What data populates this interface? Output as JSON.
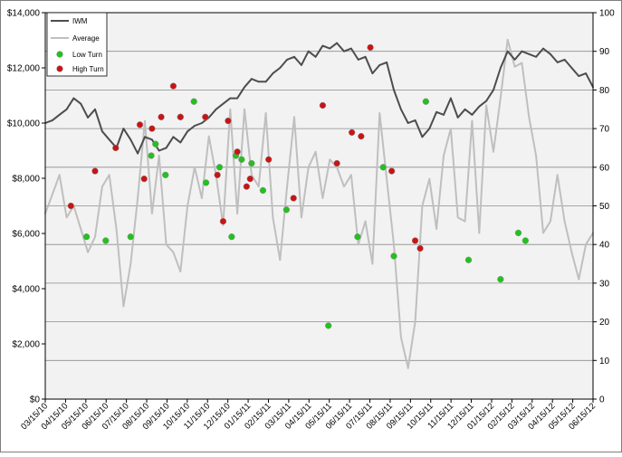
{
  "chart_data": {
    "type": "line",
    "title": "",
    "xlabel": "",
    "ylabel_left": "",
    "ylabel_right": "",
    "y_left": {
      "min": 0,
      "max": 14000,
      "ticks": [
        0,
        2000,
        4000,
        6000,
        8000,
        10000,
        12000,
        14000
      ],
      "tick_labels": [
        "$0",
        "$2,000",
        "$4,000",
        "$6,000",
        "$8,000",
        "$10,000",
        "$12,000",
        "$14,000"
      ]
    },
    "y_right": {
      "min": 0,
      "max": 100,
      "ticks": [
        0,
        10,
        20,
        30,
        40,
        50,
        60,
        70,
        80,
        90,
        100
      ],
      "tick_labels": [
        "0",
        "10",
        "20",
        "30",
        "40",
        "50",
        "60",
        "70",
        "80",
        "90",
        "100"
      ]
    },
    "x_tick_labels": [
      "03/15/10",
      "04/15/10",
      "05/15/10",
      "06/15/10",
      "07/15/10",
      "08/15/10",
      "09/15/10",
      "10/15/10",
      "11/15/10",
      "12/15/10",
      "01/15/11",
      "02/15/11",
      "03/15/11",
      "04/15/11",
      "05/15/11",
      "06/15/11",
      "07/15/11",
      "08/15/11",
      "09/15/11",
      "10/15/11",
      "11/15/11",
      "12/15/11",
      "01/15/12",
      "02/15/12",
      "03/15/12",
      "04/15/12",
      "05/15/12",
      "06/15/12"
    ],
    "grid": true,
    "legend_position": "top-left",
    "background_color": "#f2f2f2",
    "gridline_color": "#8c8c8c",
    "series": [
      {
        "name": "IWM",
        "axis": "left",
        "color": "#4d4d4d",
        "values": [
          [
            0,
            10000
          ],
          [
            1,
            10100
          ],
          [
            2,
            10300
          ],
          [
            3,
            10500
          ],
          [
            4,
            10900
          ],
          [
            5,
            10700
          ],
          [
            6,
            10200
          ],
          [
            7,
            10500
          ],
          [
            8,
            9700
          ],
          [
            9,
            9400
          ],
          [
            10,
            9100
          ],
          [
            11,
            9800
          ],
          [
            12,
            9400
          ],
          [
            13,
            8900
          ],
          [
            14,
            9500
          ],
          [
            15,
            9400
          ],
          [
            16,
            9000
          ],
          [
            17,
            9100
          ],
          [
            18,
            9500
          ],
          [
            19,
            9300
          ],
          [
            20,
            9700
          ],
          [
            21,
            9900
          ],
          [
            22,
            10000
          ],
          [
            23,
            10200
          ],
          [
            24,
            10500
          ],
          [
            25,
            10700
          ],
          [
            26,
            10900
          ],
          [
            27,
            10900
          ],
          [
            28,
            11300
          ],
          [
            29,
            11600
          ],
          [
            30,
            11500
          ],
          [
            31,
            11500
          ],
          [
            32,
            11800
          ],
          [
            33,
            12000
          ],
          [
            34,
            12300
          ],
          [
            35,
            12400
          ],
          [
            36,
            12100
          ],
          [
            37,
            12600
          ],
          [
            38,
            12400
          ],
          [
            39,
            12800
          ],
          [
            40,
            12700
          ],
          [
            41,
            12900
          ],
          [
            42,
            12600
          ],
          [
            43,
            12700
          ],
          [
            44,
            12300
          ],
          [
            45,
            12400
          ],
          [
            46,
            11800
          ],
          [
            47,
            12100
          ],
          [
            48,
            12200
          ],
          [
            49,
            11200
          ],
          [
            50,
            10500
          ],
          [
            51,
            10000
          ],
          [
            52,
            10100
          ],
          [
            53,
            9500
          ],
          [
            54,
            9800
          ],
          [
            55,
            10400
          ],
          [
            56,
            10300
          ],
          [
            57,
            10900
          ],
          [
            58,
            10200
          ],
          [
            59,
            10500
          ],
          [
            60,
            10300
          ],
          [
            61,
            10600
          ],
          [
            62,
            10800
          ],
          [
            63,
            11200
          ],
          [
            64,
            12000
          ],
          [
            65,
            12600
          ],
          [
            66,
            12300
          ],
          [
            67,
            12600
          ],
          [
            68,
            12500
          ],
          [
            69,
            12400
          ],
          [
            70,
            12700
          ],
          [
            71,
            12500
          ],
          [
            72,
            12200
          ],
          [
            73,
            12300
          ],
          [
            74,
            12000
          ],
          [
            75,
            11700
          ],
          [
            76,
            11800
          ],
          [
            77,
            11300
          ]
        ]
      },
      {
        "name": "Average",
        "axis": "right",
        "color": "#bfbfbf",
        "values": [
          [
            0,
            48
          ],
          [
            1,
            53
          ],
          [
            2,
            58
          ],
          [
            3,
            47
          ],
          [
            4,
            50
          ],
          [
            5,
            44
          ],
          [
            6,
            38
          ],
          [
            7,
            42
          ],
          [
            8,
            55
          ],
          [
            9,
            58
          ],
          [
            10,
            44
          ],
          [
            11,
            24
          ],
          [
            12,
            35
          ],
          [
            13,
            52
          ],
          [
            14,
            72
          ],
          [
            15,
            48
          ],
          [
            16,
            63
          ],
          [
            17,
            40
          ],
          [
            18,
            38
          ],
          [
            19,
            33
          ],
          [
            20,
            50
          ],
          [
            21,
            60
          ],
          [
            22,
            52
          ],
          [
            23,
            68
          ],
          [
            24,
            58
          ],
          [
            25,
            45
          ],
          [
            26,
            75
          ],
          [
            27,
            48
          ],
          [
            28,
            75
          ],
          [
            29,
            58
          ],
          [
            30,
            55
          ],
          [
            31,
            74
          ],
          [
            32,
            47
          ],
          [
            33,
            36
          ],
          [
            34,
            55
          ],
          [
            35,
            73
          ],
          [
            36,
            47
          ],
          [
            37,
            60
          ],
          [
            38,
            64
          ],
          [
            39,
            52
          ],
          [
            40,
            62
          ],
          [
            41,
            60
          ],
          [
            42,
            55
          ],
          [
            43,
            58
          ],
          [
            44,
            40
          ],
          [
            45,
            46
          ],
          [
            46,
            35
          ],
          [
            47,
            74
          ],
          [
            48,
            57
          ],
          [
            49,
            40
          ],
          [
            50,
            16
          ],
          [
            51,
            8
          ],
          [
            52,
            20
          ],
          [
            53,
            50
          ],
          [
            54,
            57
          ],
          [
            55,
            44
          ],
          [
            56,
            63
          ],
          [
            57,
            70
          ],
          [
            58,
            47
          ],
          [
            59,
            46
          ],
          [
            60,
            72
          ],
          [
            61,
            43
          ],
          [
            62,
            76
          ],
          [
            63,
            64
          ],
          [
            64,
            78
          ],
          [
            65,
            93
          ],
          [
            66,
            86
          ],
          [
            67,
            87
          ],
          [
            68,
            73
          ],
          [
            69,
            63
          ],
          [
            70,
            43
          ],
          [
            71,
            46
          ],
          [
            72,
            58
          ],
          [
            73,
            46
          ],
          [
            74,
            38
          ],
          [
            75,
            31
          ],
          [
            76,
            40
          ],
          [
            77,
            43
          ]
        ]
      },
      {
        "name": "Low Turn",
        "axis": "right",
        "color": "#22c21d",
        "values": [
          [
            5.8,
            42
          ],
          [
            8.5,
            41
          ],
          [
            12.0,
            42
          ],
          [
            14.9,
            63
          ],
          [
            15.5,
            66
          ],
          [
            16.9,
            58
          ],
          [
            19.0,
            73
          ],
          [
            20.9,
            77
          ],
          [
            22.6,
            56
          ],
          [
            24.5,
            60
          ],
          [
            26.2,
            42
          ],
          [
            26.8,
            63
          ],
          [
            27.6,
            62
          ],
          [
            29.0,
            61
          ],
          [
            30.6,
            54
          ],
          [
            33.9,
            49
          ],
          [
            39.8,
            19
          ],
          [
            43.9,
            42
          ],
          [
            47.5,
            60
          ],
          [
            49.0,
            37
          ],
          [
            53.5,
            77
          ],
          [
            59.5,
            36
          ],
          [
            64.0,
            31
          ],
          [
            66.5,
            43
          ],
          [
            67.5,
            41
          ]
        ]
      },
      {
        "name": "High Turn",
        "axis": "right",
        "color": "#c81414",
        "values": [
          [
            3.6,
            50
          ],
          [
            7.0,
            59
          ],
          [
            9.9,
            65
          ],
          [
            13.3,
            71
          ],
          [
            13.9,
            57
          ],
          [
            15.0,
            70
          ],
          [
            16.3,
            73
          ],
          [
            18.0,
            81
          ],
          [
            19.0,
            73
          ],
          [
            22.5,
            73
          ],
          [
            24.2,
            58
          ],
          [
            25.0,
            46
          ],
          [
            25.7,
            72
          ],
          [
            27.0,
            64
          ],
          [
            28.3,
            55
          ],
          [
            28.8,
            57
          ],
          [
            31.4,
            62
          ],
          [
            34.9,
            52
          ],
          [
            39.0,
            76
          ],
          [
            41.0,
            61
          ],
          [
            43.1,
            69
          ],
          [
            44.4,
            68
          ],
          [
            45.7,
            91
          ],
          [
            48.7,
            59
          ],
          [
            52.0,
            41
          ],
          [
            52.7,
            39
          ]
        ]
      }
    ]
  }
}
